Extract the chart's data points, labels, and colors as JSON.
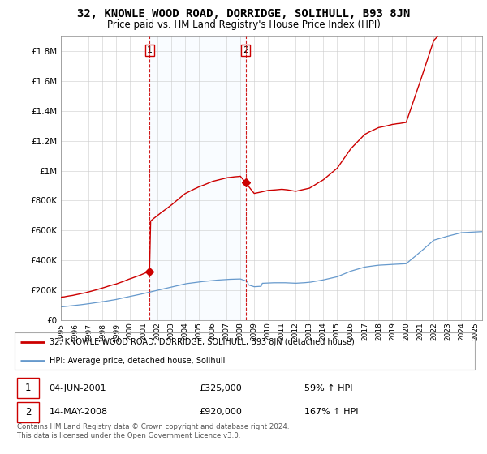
{
  "title": "32, KNOWLE WOOD ROAD, DORRIDGE, SOLIHULL, B93 8JN",
  "subtitle": "Price paid vs. HM Land Registry's House Price Index (HPI)",
  "legend_line1": "32, KNOWLE WOOD ROAD, DORRIDGE, SOLIHULL, B93 8JN (detached house)",
  "legend_line2": "HPI: Average price, detached house, Solihull",
  "annotation1_label": "1",
  "annotation1_date": "04-JUN-2001",
  "annotation1_price": "£325,000",
  "annotation1_hpi": "59% ↑ HPI",
  "annotation2_label": "2",
  "annotation2_date": "14-MAY-2008",
  "annotation2_price": "£920,000",
  "annotation2_hpi": "167% ↑ HPI",
  "footer": "Contains HM Land Registry data © Crown copyright and database right 2024.\nThis data is licensed under the Open Government Licence v3.0.",
  "red_color": "#cc0000",
  "blue_color": "#6699cc",
  "shade_color": "#ddeeff",
  "ylim": [
    0,
    1900000
  ],
  "yticks": [
    0,
    200000,
    400000,
    600000,
    800000,
    1000000,
    1200000,
    1400000,
    1600000,
    1800000
  ],
  "ytick_labels": [
    "£0",
    "£200K",
    "£400K",
    "£600K",
    "£800K",
    "£1M",
    "£1.2M",
    "£1.4M",
    "£1.6M",
    "£1.8M"
  ],
  "sale1_x": 2001.42,
  "sale1_y": 325000,
  "sale2_x": 2008.37,
  "sale2_y": 920000,
  "vline1_x": 2001.42,
  "vline2_x": 2008.37,
  "xmin": 1995,
  "xmax": 2025.5
}
